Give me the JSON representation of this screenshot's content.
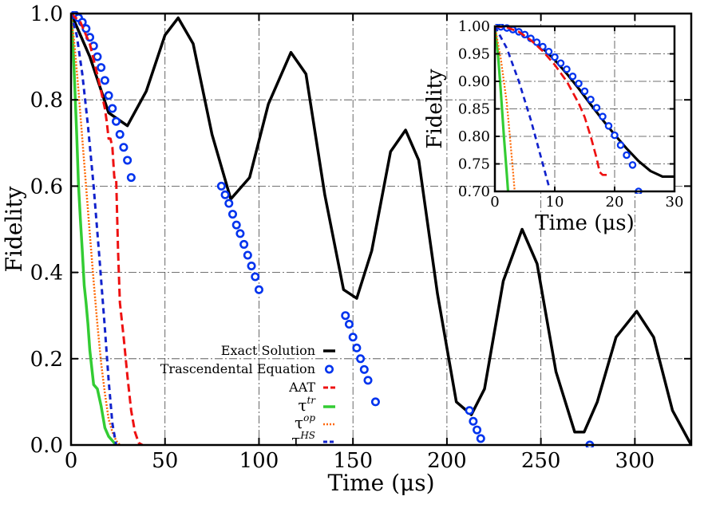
{
  "chart_data": [
    {
      "id": "main",
      "type": "line",
      "xlabel": "Time (μs)",
      "ylabel": "Fidelity",
      "xlim": [
        0,
        330
      ],
      "ylim": [
        0,
        1.0
      ],
      "xticks": [
        0,
        50,
        100,
        150,
        200,
        250,
        300
      ],
      "yticks": [
        0.0,
        0.2,
        0.4,
        0.6,
        0.8,
        1.0
      ],
      "ytick_labels": [
        "0.0",
        "0.2",
        "0.4",
        "0.6",
        "0.8",
        "1.0"
      ],
      "grid": true,
      "legend_position": "lower-center",
      "series": [
        {
          "name": "Exact Solution",
          "style": "solid",
          "color": "#000000",
          "x": [
            0,
            10,
            20,
            30,
            40,
            50,
            57,
            65,
            75,
            85,
            95,
            105,
            117,
            125,
            135,
            145,
            152,
            160,
            170,
            178,
            185,
            195,
            205,
            213,
            220,
            230,
            240,
            248,
            258,
            268,
            273,
            280,
            290,
            301,
            310,
            320,
            330
          ],
          "y": [
            1.0,
            0.9,
            0.77,
            0.74,
            0.82,
            0.95,
            0.99,
            0.93,
            0.72,
            0.57,
            0.62,
            0.79,
            0.91,
            0.86,
            0.58,
            0.36,
            0.34,
            0.45,
            0.68,
            0.73,
            0.66,
            0.35,
            0.1,
            0.07,
            0.13,
            0.38,
            0.5,
            0.42,
            0.17,
            0.03,
            0.03,
            0.1,
            0.25,
            0.31,
            0.25,
            0.08,
            0.0
          ]
        },
        {
          "name": "Trascendental Equation",
          "style": "circles",
          "color": "#0033ee",
          "x": [
            0,
            2,
            4,
            6,
            8,
            10,
            12,
            14,
            16,
            18,
            20,
            22,
            24,
            26,
            28,
            30,
            32,
            80,
            82,
            84,
            86,
            88,
            90,
            92,
            94,
            96,
            98,
            100,
            146,
            148,
            150,
            152,
            154,
            156,
            158,
            162,
            212,
            214,
            216,
            218,
            276
          ],
          "y": [
            1.0,
            0.997,
            0.99,
            0.98,
            0.965,
            0.945,
            0.925,
            0.9,
            0.875,
            0.845,
            0.81,
            0.78,
            0.75,
            0.72,
            0.69,
            0.66,
            0.62,
            0.6,
            0.58,
            0.56,
            0.535,
            0.51,
            0.49,
            0.465,
            0.44,
            0.415,
            0.39,
            0.36,
            0.3,
            0.28,
            0.25,
            0.225,
            0.2,
            0.175,
            0.15,
            0.1,
            0.08,
            0.055,
            0.035,
            0.015,
            0.0
          ]
        },
        {
          "name": "AAT",
          "style": "dashed",
          "color": "#ee1111",
          "x": [
            0,
            5,
            10,
            15,
            18,
            19,
            20,
            21,
            22,
            23,
            24,
            25,
            26,
            28,
            30,
            32,
            34,
            36,
            38
          ],
          "y": [
            1.0,
            0.98,
            0.93,
            0.84,
            0.78,
            0.75,
            0.71,
            0.71,
            0.69,
            0.62,
            0.62,
            0.45,
            0.33,
            0.25,
            0.16,
            0.08,
            0.03,
            0.005,
            0.0
          ]
        },
        {
          "name": "τ^tr",
          "style": "solid",
          "color": "#33cc33",
          "x": [
            0,
            1,
            2,
            3,
            4,
            5,
            6,
            7,
            8,
            9,
            10,
            12,
            14,
            16,
            18,
            20,
            22,
            24
          ],
          "y": [
            1.0,
            0.93,
            0.83,
            0.72,
            0.6,
            0.52,
            0.45,
            0.37,
            0.33,
            0.28,
            0.22,
            0.14,
            0.13,
            0.09,
            0.04,
            0.02,
            0.01,
            0.0
          ]
        },
        {
          "name": "τ^op",
          "style": "dotted",
          "color": "#ff6600",
          "x": [
            0,
            2,
            4,
            6,
            8,
            10,
            12,
            14,
            16,
            18,
            20,
            22,
            24,
            26
          ],
          "y": [
            1.0,
            0.92,
            0.82,
            0.71,
            0.6,
            0.49,
            0.38,
            0.28,
            0.19,
            0.12,
            0.06,
            0.03,
            0.01,
            0.0
          ]
        },
        {
          "name": "τ^HS",
          "style": "dashed",
          "color": "#1122cc",
          "x": [
            0,
            3,
            6,
            9,
            12,
            15,
            18,
            20,
            22,
            24
          ],
          "y": [
            1.0,
            0.95,
            0.86,
            0.74,
            0.6,
            0.44,
            0.27,
            0.15,
            0.05,
            0.0
          ]
        }
      ]
    },
    {
      "id": "inset",
      "type": "line",
      "xlabel": "Time (μs)",
      "ylabel": "Fidelity",
      "xlim": [
        0,
        30
      ],
      "ylim": [
        0.7,
        1.0
      ],
      "xticks": [
        0,
        10,
        20,
        30
      ],
      "yticks": [
        0.7,
        0.75,
        0.8,
        0.85,
        0.9,
        0.95,
        1.0
      ],
      "ytick_labels": [
        "0.70",
        "0.75",
        "0.80",
        "0.85",
        "0.90",
        "0.95",
        "1.00"
      ],
      "grid": true,
      "series": [
        {
          "name": "Exact Solution",
          "style": "solid",
          "color": "#000000",
          "x": [
            0,
            2,
            4,
            6,
            8,
            10,
            12,
            14,
            16,
            18,
            20,
            22,
            24,
            26,
            28,
            30
          ],
          "y": [
            1.0,
            0.997,
            0.99,
            0.977,
            0.96,
            0.939,
            0.914,
            0.887,
            0.858,
            0.83,
            0.803,
            0.778,
            0.755,
            0.737,
            0.727,
            0.727
          ]
        },
        {
          "name": "Trascendental Equation",
          "style": "circles",
          "color": "#0033ee",
          "x": [
            0,
            1,
            2,
            3,
            4,
            5,
            6,
            7,
            8,
            9,
            10,
            11,
            12,
            13,
            14,
            15,
            16,
            17,
            18,
            19,
            20,
            21,
            22,
            23,
            24
          ],
          "y": [
            1.0,
            0.999,
            0.997,
            0.994,
            0.99,
            0.985,
            0.978,
            0.971,
            0.963,
            0.954,
            0.944,
            0.933,
            0.922,
            0.909,
            0.896,
            0.882,
            0.867,
            0.852,
            0.836,
            0.819,
            0.802,
            0.784,
            0.766,
            0.748,
            0.7
          ]
        },
        {
          "name": "AAT",
          "style": "dashed",
          "color": "#ee1111",
          "x": [
            0,
            2,
            4,
            6,
            8,
            10,
            12,
            14,
            15,
            16,
            17,
            17.5,
            18,
            18.5,
            19
          ],
          "y": [
            1.0,
            0.998,
            0.99,
            0.975,
            0.955,
            0.93,
            0.9,
            0.86,
            0.835,
            0.8,
            0.76,
            0.735,
            0.73,
            0.73,
            0.73
          ]
        },
        {
          "name": "τ^tr",
          "style": "solid",
          "color": "#33cc33",
          "x": [
            0,
            0.5,
            1,
            1.5,
            2,
            2.2
          ],
          "y": [
            1.0,
            0.95,
            0.88,
            0.8,
            0.73,
            0.7
          ]
        },
        {
          "name": "τ^op",
          "style": "dotted",
          "color": "#ff6600",
          "x": [
            0,
            1,
            2,
            2.5,
            3,
            3.3
          ],
          "y": [
            1.0,
            0.94,
            0.86,
            0.8,
            0.74,
            0.7
          ]
        },
        {
          "name": "τ^HS",
          "style": "dashed",
          "color": "#1122cc",
          "x": [
            0,
            2,
            4,
            6,
            8,
            9
          ],
          "y": [
            1.0,
            0.96,
            0.9,
            0.83,
            0.75,
            0.71
          ]
        }
      ]
    }
  ],
  "legend": [
    {
      "label": "Exact Solution",
      "sup": "",
      "series": "Exact Solution"
    },
    {
      "label": "Trascendental Equation",
      "sup": "",
      "series": "Trascendental Equation"
    },
    {
      "label": "AAT",
      "sup": "",
      "series": "AAT"
    },
    {
      "label": "τ",
      "sup": "tr",
      "series": "τ^tr"
    },
    {
      "label": "τ",
      "sup": "op",
      "series": "τ^op"
    },
    {
      "label": "τ",
      "sup": "HS",
      "series": "τ^HS"
    }
  ]
}
